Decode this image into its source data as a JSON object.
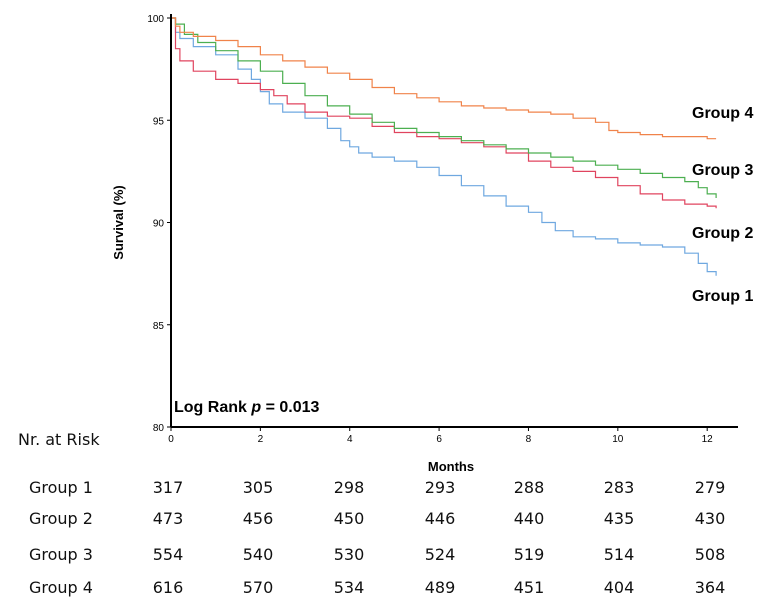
{
  "chart_data": {
    "type": "line",
    "step": true,
    "ylabel": "Survival (%)",
    "xlabel": "Months",
    "xlim": [
      0,
      12.6
    ],
    "ylim": [
      80,
      100
    ],
    "xticks": [
      0,
      2,
      4,
      6,
      8,
      10,
      12
    ],
    "yticks": [
      80,
      85,
      90,
      95,
      100
    ],
    "annotation": {
      "prefix": "Log Rank ",
      "italic": "p",
      "suffix": " = 0.013"
    },
    "series": [
      {
        "name": "Group 1",
        "color": "#6fa8e0",
        "x": [
          0,
          0.1,
          0.2,
          0.5,
          1.0,
          1.5,
          1.8,
          2.0,
          2.2,
          2.5,
          3.0,
          3.5,
          3.8,
          4.0,
          4.2,
          4.5,
          5.0,
          5.5,
          6.0,
          6.5,
          7.0,
          7.5,
          8.0,
          8.3,
          8.6,
          9.0,
          9.5,
          10.0,
          10.5,
          11.0,
          11.5,
          11.8,
          12.0,
          12.2
        ],
        "y": [
          100,
          99.3,
          99.0,
          98.6,
          98.2,
          97.5,
          97.0,
          96.4,
          95.8,
          95.4,
          95.1,
          94.6,
          94.0,
          93.7,
          93.4,
          93.2,
          93.0,
          92.7,
          92.3,
          91.8,
          91.3,
          90.8,
          90.5,
          90.0,
          89.6,
          89.3,
          89.2,
          89.0,
          88.9,
          88.8,
          88.5,
          88.0,
          87.6,
          87.4
        ]
      },
      {
        "name": "Group 2",
        "color": "#e0445f",
        "x": [
          0,
          0.1,
          0.2,
          0.5,
          1.0,
          1.5,
          2.0,
          2.3,
          2.6,
          3.0,
          3.5,
          4.0,
          4.5,
          5.0,
          5.5,
          6.0,
          6.5,
          7.0,
          7.5,
          8.0,
          8.5,
          9.0,
          9.5,
          10.0,
          10.5,
          11.0,
          11.5,
          12.0,
          12.2
        ],
        "y": [
          100,
          98.5,
          97.9,
          97.4,
          97.0,
          96.8,
          96.5,
          96.2,
          95.8,
          95.4,
          95.2,
          95.1,
          94.7,
          94.4,
          94.2,
          94.1,
          93.9,
          93.7,
          93.4,
          93.0,
          92.7,
          92.5,
          92.2,
          91.8,
          91.4,
          91.1,
          90.9,
          90.8,
          90.7
        ]
      },
      {
        "name": "Group 3",
        "color": "#4caf50",
        "x": [
          0,
          0.1,
          0.3,
          0.6,
          1.0,
          1.5,
          2.0,
          2.5,
          3.0,
          3.5,
          4.0,
          4.5,
          5.0,
          5.5,
          6.0,
          6.5,
          7.0,
          7.5,
          8.0,
          8.5,
          9.0,
          9.5,
          10.0,
          10.5,
          11.0,
          11.5,
          11.8,
          12.0,
          12.2
        ],
        "y": [
          100,
          99.7,
          99.2,
          98.8,
          98.4,
          97.9,
          97.4,
          96.8,
          96.2,
          95.7,
          95.3,
          94.9,
          94.6,
          94.4,
          94.2,
          94.0,
          93.8,
          93.6,
          93.4,
          93.2,
          93.0,
          92.8,
          92.6,
          92.4,
          92.2,
          92.0,
          91.7,
          91.4,
          91.2
        ]
      },
      {
        "name": "Group 4",
        "color": "#f0834a",
        "x": [
          0,
          0.1,
          0.2,
          0.5,
          1.0,
          1.5,
          2.0,
          2.5,
          3.0,
          3.5,
          4.0,
          4.5,
          5.0,
          5.5,
          6.0,
          6.5,
          7.0,
          7.5,
          8.0,
          8.5,
          9.0,
          9.5,
          9.8,
          10.0,
          10.5,
          11.0,
          11.5,
          12.0,
          12.2
        ],
        "y": [
          100,
          99.6,
          99.3,
          99.1,
          98.9,
          98.6,
          98.2,
          97.9,
          97.6,
          97.3,
          97.0,
          96.6,
          96.3,
          96.1,
          95.9,
          95.7,
          95.6,
          95.5,
          95.4,
          95.3,
          95.1,
          94.9,
          94.5,
          94.4,
          94.3,
          94.2,
          94.2,
          94.1,
          94.1
        ]
      }
    ]
  },
  "risk_table": {
    "header": "Nr. at Risk",
    "rows": [
      {
        "label": "Group 1",
        "values": [
          "317",
          "305",
          "298",
          "293",
          "288",
          "283",
          "279"
        ]
      },
      {
        "label": "Group 2",
        "values": [
          "473",
          "456",
          "450",
          "446",
          "440",
          "435",
          "430"
        ]
      },
      {
        "label": "Group 3",
        "values": [
          "554",
          "540",
          "530",
          "524",
          "519",
          "514",
          "508"
        ]
      },
      {
        "label": "Group 4",
        "values": [
          "616",
          "570",
          "534",
          "489",
          "451",
          "404",
          "364"
        ]
      }
    ]
  }
}
